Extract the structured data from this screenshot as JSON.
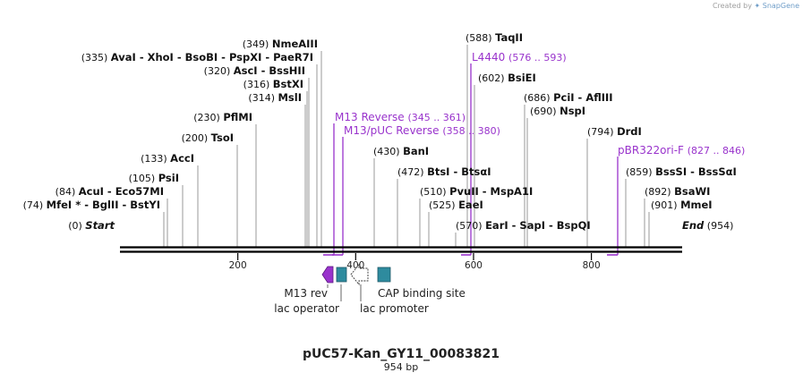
{
  "credit": {
    "prefix": "Created by",
    "brand": "SnapGene"
  },
  "title": "pUC57-Kan_GY11_00083821",
  "length_label": "954 bp",
  "colors": {
    "primer": "#9933cc",
    "feature_blue": "#2e8b9e",
    "line": "#000000",
    "tick": "#999999"
  },
  "ruler": {
    "ticks": [
      "200",
      "400",
      "600",
      "800"
    ]
  },
  "enzymes": [
    {
      "label": "Start",
      "pos": "(0)",
      "style": "italic"
    },
    {
      "label": "MfeI * - BglII - BstYI",
      "pos": "(74)"
    },
    {
      "label": "AcuI - Eco57MI",
      "pos": "(84)"
    },
    {
      "label": "PsiI",
      "pos": "(105)"
    },
    {
      "label": "AccI",
      "pos": "(133)"
    },
    {
      "label": "TsoI",
      "pos": "(200)"
    },
    {
      "label": "PflMI",
      "pos": "(230)"
    },
    {
      "label": "MslI",
      "pos": "(314)"
    },
    {
      "label": "BstXI",
      "pos": "(316)"
    },
    {
      "label": "AscI - BssHII",
      "pos": "(320)"
    },
    {
      "label": "AvaI - XhoI - BsoBI - PspXI - PaeR7I",
      "pos": "(335)"
    },
    {
      "label": "NmeAIII",
      "pos": "(349)"
    },
    {
      "label": "BanI",
      "pos": "(430)"
    },
    {
      "label": "BtsI - BtsαI",
      "pos": "(472)"
    },
    {
      "label": "PvuII - MspA1I",
      "pos": "(510)"
    },
    {
      "label": "EaeI",
      "pos": "(525)"
    },
    {
      "label": "EarI - SapI - BspQI",
      "pos": "(570)"
    },
    {
      "label": "TaqII",
      "pos": "(588)"
    },
    {
      "label": "BsiEI",
      "pos": "(602)"
    },
    {
      "label": "PciI - AflIII",
      "pos": "(686)"
    },
    {
      "label": "NspI",
      "pos": "(690)"
    },
    {
      "label": "DrdI",
      "pos": "(794)"
    },
    {
      "label": "BssSI - BssSαI",
      "pos": "(859)"
    },
    {
      "label": "BsaWI",
      "pos": "(892)"
    },
    {
      "label": "MmeI",
      "pos": "(901)"
    },
    {
      "label": "End",
      "pos": "(954)",
      "style": "italic"
    }
  ],
  "primers": [
    {
      "label": "M13 Reverse",
      "range": "(345 .. 361)"
    },
    {
      "label": "M13/pUC Reverse",
      "range": "(358 .. 380)"
    },
    {
      "label": "L4440",
      "range": "(576 .. 593)"
    },
    {
      "label": "pBR322ori-F",
      "range": "(827 .. 846)"
    }
  ],
  "features": [
    {
      "label": "M13 rev"
    },
    {
      "label": "lac operator"
    },
    {
      "label": "lac promoter"
    },
    {
      "label": "CAP binding site"
    }
  ]
}
